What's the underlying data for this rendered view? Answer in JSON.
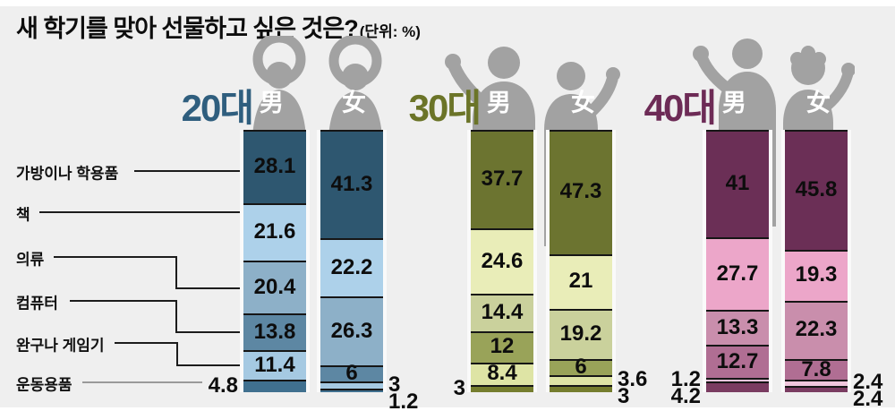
{
  "title": {
    "main": "새 학기를 맞아 선물하고 싶은 것은?",
    "unit": "(단위: %)"
  },
  "chart_data": {
    "type": "bar",
    "stacked": true,
    "orientation": "vertical",
    "unit": "%",
    "value_range": [
      0,
      100
    ],
    "background_color": "#EFEFEF",
    "silhouette_color": "#A2A2A2",
    "categories": [
      "가방이나 학용품",
      "책",
      "의류",
      "컴퓨터",
      "완구나 게임기",
      "운동용품"
    ],
    "groups": [
      {
        "label": "20대",
        "accent_color": "#2F5E7E",
        "category_colors": [
          "#2E5770",
          "#ADD1EA",
          "#8DB0C8",
          "#5D87A3",
          "#A5C9E2",
          "#40708F"
        ],
        "series": [
          {
            "name": "男",
            "values": [
              28.1,
              21.6,
              20.4,
              13.8,
              11.4,
              4.8
            ]
          },
          {
            "name": "女",
            "values": [
              41.3,
              22.2,
              26.3,
              6,
              3,
              1.2
            ]
          }
        ]
      },
      {
        "label": "30대",
        "accent_color": "#6B7428",
        "category_colors": [
          "#6C7430",
          "#E9EDB8",
          "#CAD19C",
          "#99A359",
          "#DEE4A5",
          "#757D2E"
        ],
        "series": [
          {
            "name": "男",
            "values": [
              37.7,
              24.6,
              14.4,
              12,
              8.4,
              3
            ]
          },
          {
            "name": "女",
            "values": [
              47.3,
              21,
              19.2,
              6,
              3.6,
              3
            ]
          }
        ]
      },
      {
        "label": "40대",
        "accent_color": "#6D2B56",
        "category_colors": [
          "#6B2F56",
          "#ECA6C9",
          "#C98EAC",
          "#B06E93",
          "#EFC6DC",
          "#7A3C61"
        ],
        "series": [
          {
            "name": "男",
            "values": [
              41,
              27.7,
              13.3,
              12.7,
              1.2,
              4.2
            ]
          },
          {
            "name": "女",
            "values": [
              45.8,
              19.3,
              22.3,
              7.8,
              2.4,
              2.4
            ]
          }
        ]
      }
    ]
  }
}
